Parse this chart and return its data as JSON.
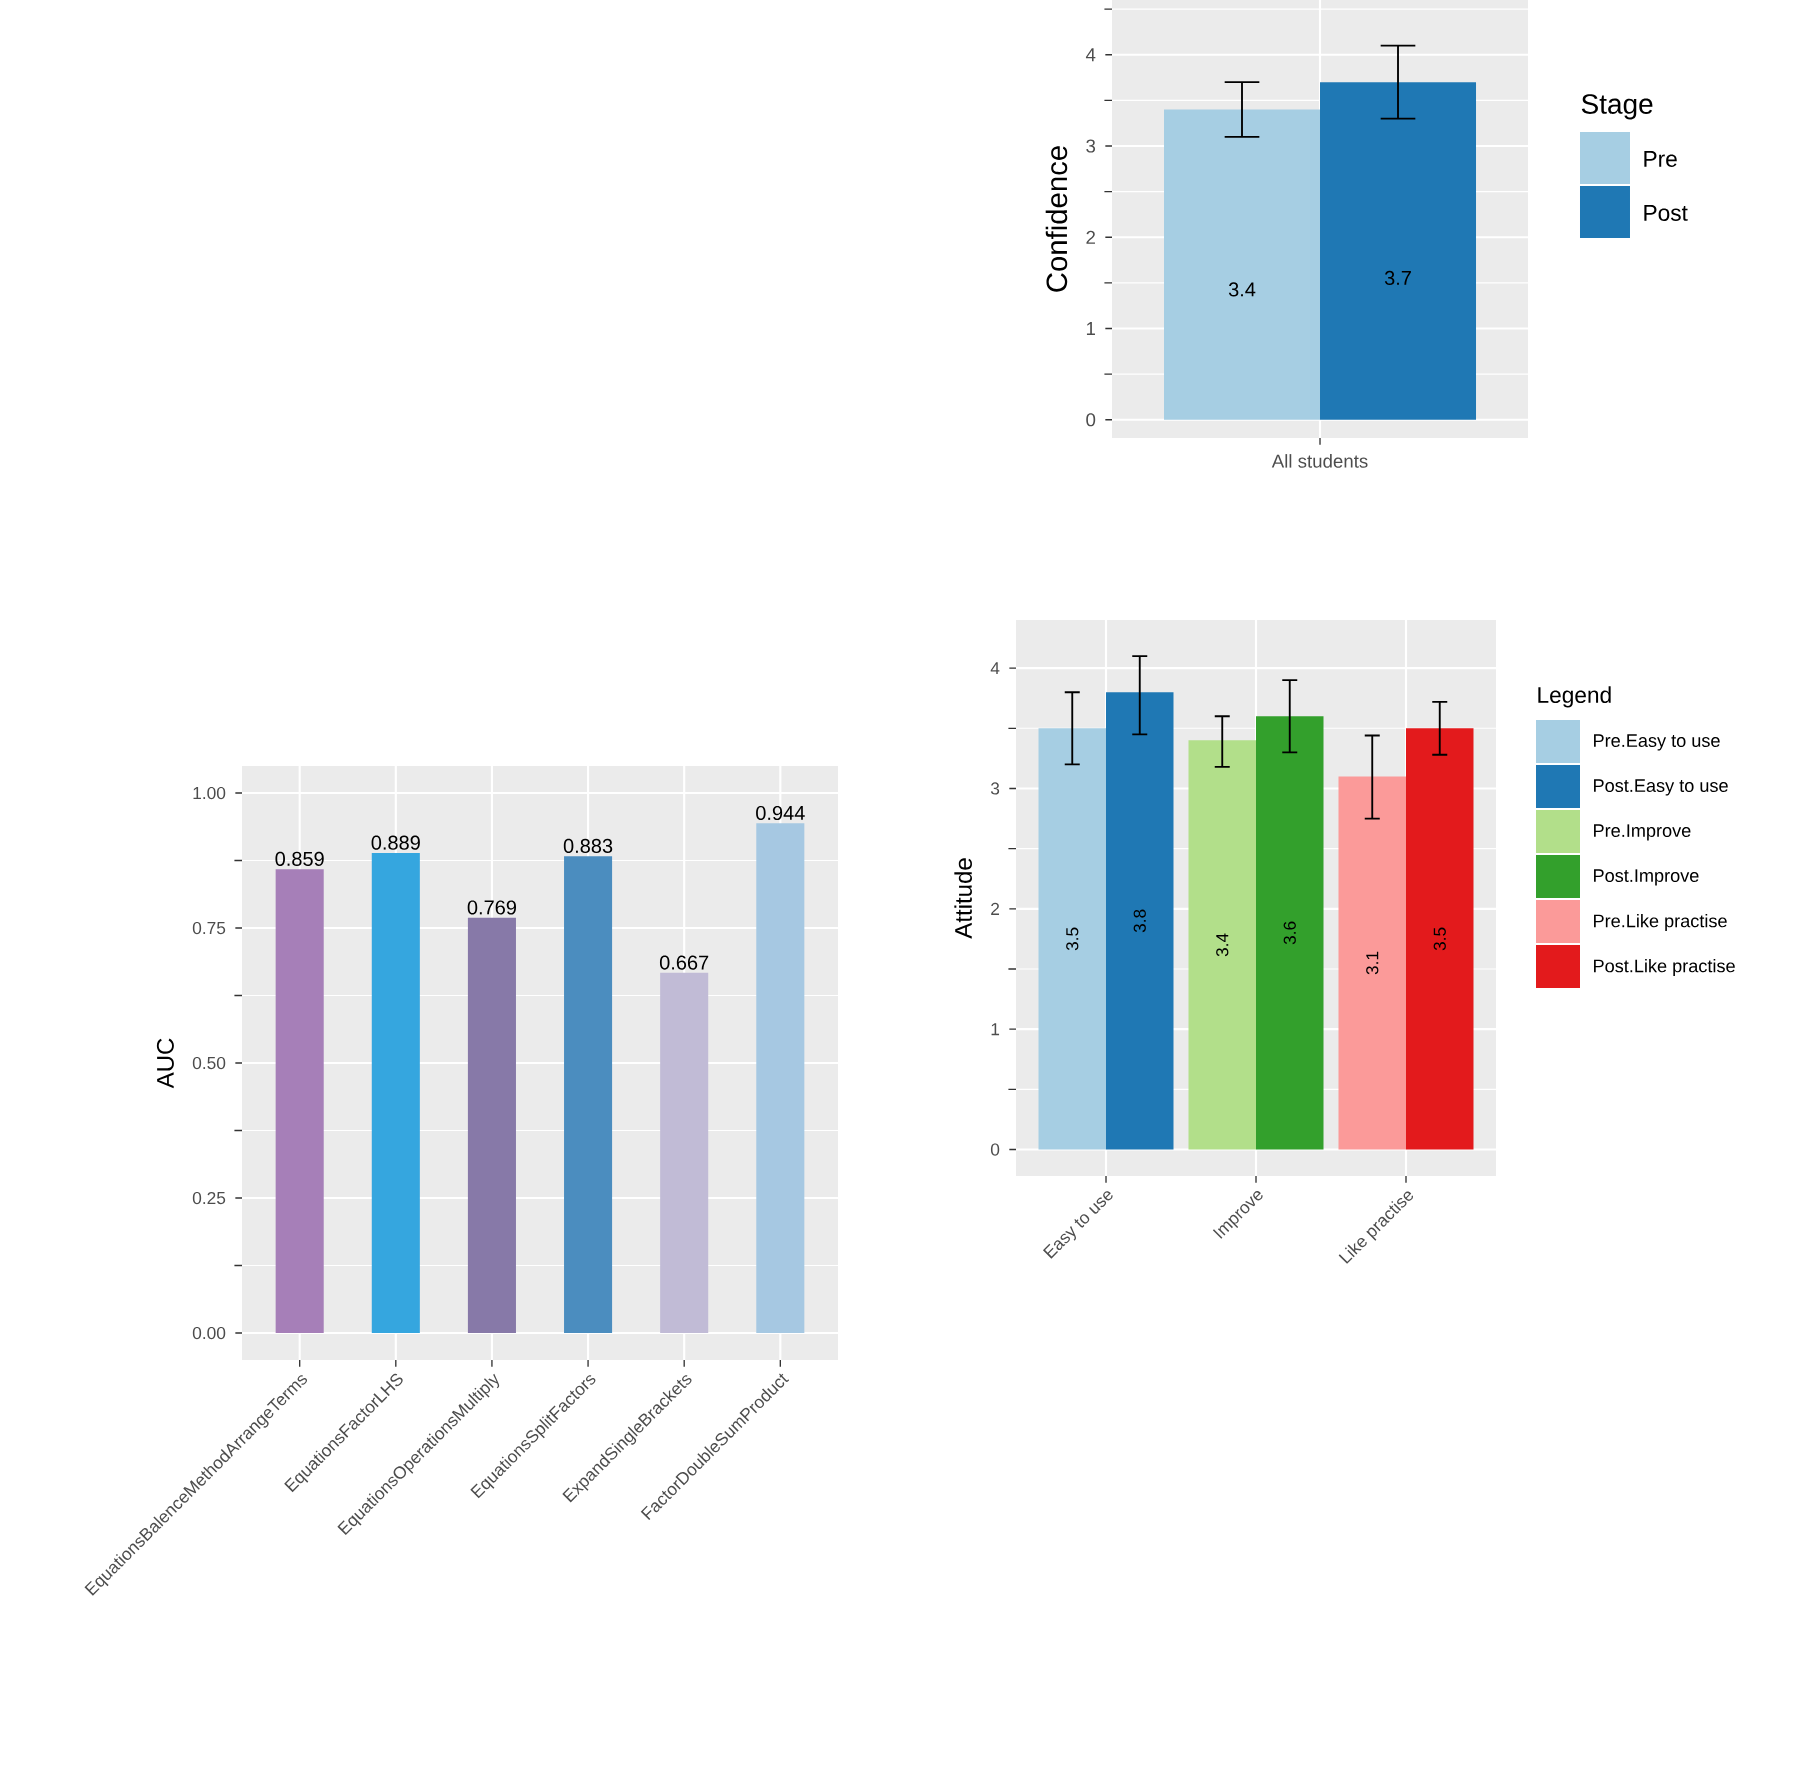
{
  "chart_data": [
    {
      "type": "bar",
      "ylabel": "Confidence",
      "categories": [
        "All students"
      ],
      "series": [
        {
          "name": "Pre",
          "color": "#a6cee3",
          "values": [
            3.4
          ],
          "errors": [
            [
              3.1,
              3.7
            ]
          ]
        },
        {
          "name": "Post",
          "color": "#1f78b4",
          "values": [
            3.7
          ],
          "errors": [
            [
              3.3,
              4.1
            ]
          ]
        }
      ],
      "ylim": [
        -0.2,
        4.6
      ],
      "yticks": [
        0,
        1,
        2,
        3,
        4
      ],
      "grid": true,
      "legend": "right",
      "legend_title": "Stage",
      "data_labels": true
    },
    {
      "type": "bar",
      "ylabel": "AUC",
      "categories": [
        "EquationsBalenceMethodArrangeTerms",
        "EquationsFactorLHS",
        "EquationsOperationsMultiply",
        "EquationsSplitFactors",
        "ExpandSingleBrackets",
        "FactorDoubleSumProduct"
      ],
      "values": [
        0.859,
        0.889,
        0.769,
        0.883,
        0.667,
        0.944
      ],
      "colors": [
        "#a67fb8",
        "#35a6df",
        "#8779a8",
        "#4b8dbf",
        "#c1bbd6",
        "#a6c8e2"
      ],
      "ylim": [
        -0.05,
        1.05
      ],
      "yticks": [
        {
          "value": 0,
          "label": "0.00"
        },
        {
          "value": 0.25,
          "label": "0.25"
        },
        {
          "value": 0.5,
          "label": "0.50"
        },
        {
          "value": 0.75,
          "label": "0.75"
        },
        {
          "value": 1,
          "label": "1.00"
        }
      ],
      "grid": true,
      "data_labels": true
    },
    {
      "type": "bar",
      "ylabel": "Attitude",
      "categories": [
        "Easy to use",
        "Improve",
        "Like practise"
      ],
      "series": [
        {
          "name": "Pre.Easy to use",
          "color": "#a6cee3",
          "values": [
            3.5,
            null,
            null
          ],
          "errors": [
            [
              3.2,
              3.8
            ],
            null,
            null
          ]
        },
        {
          "name": "Post.Easy to use",
          "color": "#1f78b4",
          "values": [
            3.8,
            null,
            null
          ],
          "errors": [
            [
              3.45,
              4.1
            ],
            null,
            null
          ]
        },
        {
          "name": "Pre.Improve",
          "color": "#b2df8a",
          "values": [
            null,
            3.4,
            null
          ],
          "errors": [
            null,
            [
              3.18,
              3.6
            ],
            null
          ]
        },
        {
          "name": "Post.Improve",
          "color": "#33a02c",
          "values": [
            null,
            3.6,
            null
          ],
          "errors": [
            null,
            [
              3.3,
              3.9
            ],
            null
          ]
        },
        {
          "name": "Pre.Like practise",
          "color": "#fb9a99",
          "values": [
            null,
            null,
            3.1
          ],
          "errors": [
            null,
            null,
            [
              2.75,
              3.44
            ]
          ]
        },
        {
          "name": "Post.Like practise",
          "color": "#e31a1c",
          "values": [
            null,
            null,
            3.5
          ],
          "errors": [
            null,
            null,
            [
              3.28,
              3.72
            ]
          ]
        }
      ],
      "ylim": [
        -0.22,
        4.4
      ],
      "yticks": [
        0,
        1,
        2,
        3,
        4
      ],
      "grid": true,
      "legend": "right",
      "legend_title": "Legend",
      "data_labels": true
    }
  ]
}
